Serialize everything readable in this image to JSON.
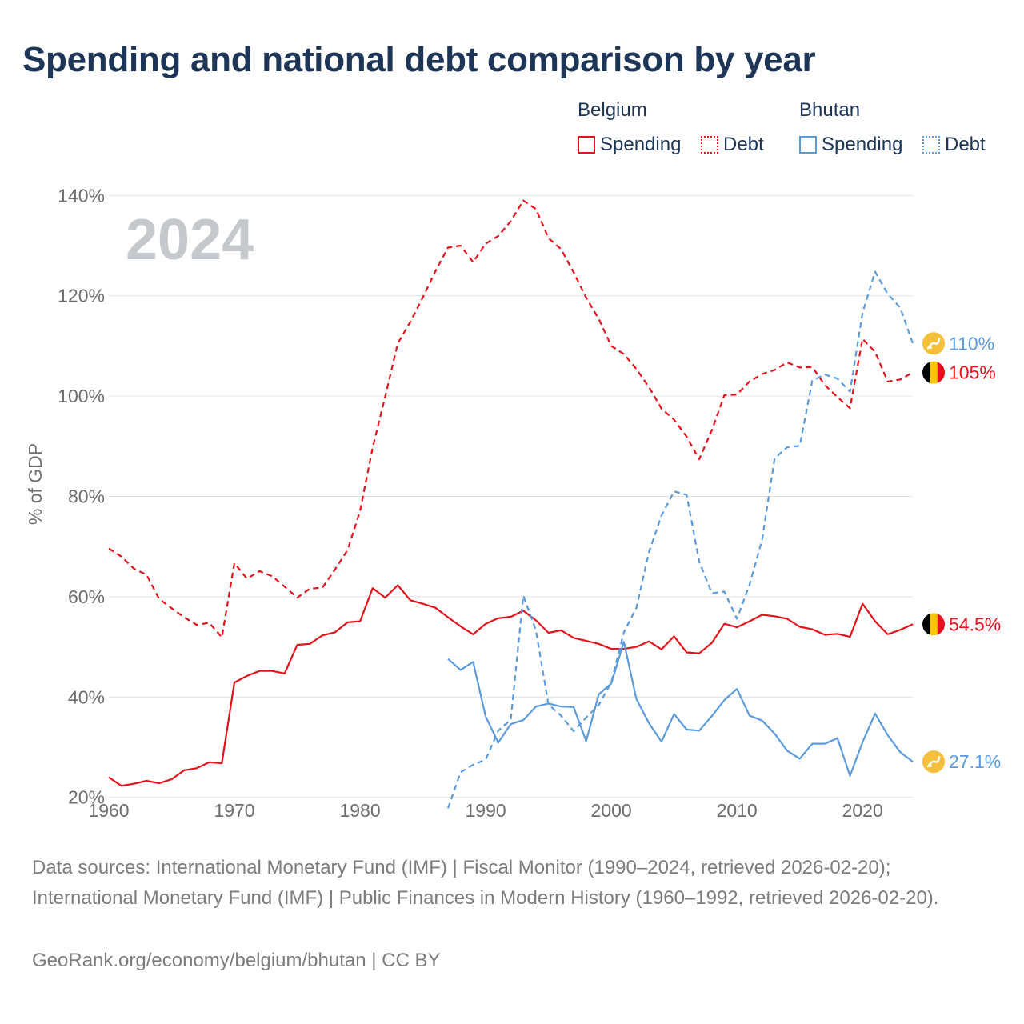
{
  "title": "Spending and national debt comparison by year",
  "legend": {
    "groups": [
      {
        "country": "Belgium",
        "items": [
          {
            "label": "Spending",
            "style": "solid",
            "color": "#e3121b"
          },
          {
            "label": "Debt",
            "style": "dotted",
            "color": "#e3121b"
          }
        ]
      },
      {
        "country": "Bhutan",
        "items": [
          {
            "label": "Spending",
            "style": "solid",
            "color": "#5b9bdc"
          },
          {
            "label": "Debt",
            "style": "dotted",
            "color": "#5b9bdc"
          }
        ]
      }
    ]
  },
  "chart_data": {
    "type": "line",
    "title": "Spending and national debt comparison by year",
    "year_label": "2024",
    "xlabel": "",
    "ylabel": "% of GDP",
    "xlim": [
      1960,
      2024
    ],
    "ylim": [
      15,
      145
    ],
    "x_ticks": [
      1960,
      1970,
      1980,
      1990,
      2000,
      2010,
      2020
    ],
    "y_ticks": [
      20,
      40,
      60,
      80,
      100,
      120,
      140
    ],
    "y_tick_suffix": "%",
    "grid": true,
    "series": [
      {
        "name": "Belgium Debt",
        "country": "Belgium",
        "metric": "Debt",
        "color": "#e3121b",
        "dash": "dashed",
        "end_label": "105%",
        "flag": "belgium",
        "points": [
          [
            1960,
            69.6
          ],
          [
            1961,
            68
          ],
          [
            1962,
            65.6
          ],
          [
            1963,
            64.4
          ],
          [
            1964,
            59.6
          ],
          [
            1965,
            57.7
          ],
          [
            1966,
            55.9
          ],
          [
            1967,
            54.4
          ],
          [
            1968,
            54.8
          ],
          [
            1969,
            51.9
          ],
          [
            1970,
            66.7
          ],
          [
            1971,
            63.6
          ],
          [
            1972,
            65.1
          ],
          [
            1973,
            64.1
          ],
          [
            1974,
            62
          ],
          [
            1975,
            59.8
          ],
          [
            1976,
            61.6
          ],
          [
            1977,
            61.8
          ],
          [
            1978,
            65.4
          ],
          [
            1979,
            69.3
          ],
          [
            1980,
            77.1
          ],
          [
            1981,
            89.7
          ],
          [
            1982,
            99.9
          ],
          [
            1983,
            110.5
          ],
          [
            1984,
            114.8
          ],
          [
            1985,
            119.7
          ],
          [
            1986,
            124.9
          ],
          [
            1987,
            129.6
          ],
          [
            1988,
            130
          ],
          [
            1989,
            126.7
          ],
          [
            1990,
            130.4
          ],
          [
            1991,
            131.9
          ],
          [
            1992,
            134.9
          ],
          [
            1993,
            139
          ],
          [
            1994,
            137.3
          ],
          [
            1995,
            131.5
          ],
          [
            1996,
            129.3
          ],
          [
            1997,
            124.7
          ],
          [
            1998,
            119.6
          ],
          [
            1999,
            115.4
          ],
          [
            2000,
            110
          ],
          [
            2001,
            108.4
          ],
          [
            2002,
            105.4
          ],
          [
            2003,
            101.8
          ],
          [
            2004,
            97.5
          ],
          [
            2005,
            95.3
          ],
          [
            2006,
            91.9
          ],
          [
            2007,
            87.4
          ],
          [
            2008,
            93.2
          ],
          [
            2009,
            100.2
          ],
          [
            2010,
            100.3
          ],
          [
            2011,
            102.9
          ],
          [
            2012,
            104.4
          ],
          [
            2013,
            105.2
          ],
          [
            2014,
            106.7
          ],
          [
            2015,
            105.7
          ],
          [
            2016,
            105.8
          ],
          [
            2017,
            102.2
          ],
          [
            2018,
            99.8
          ],
          [
            2019,
            97.6
          ],
          [
            2020,
            111.4
          ],
          [
            2021,
            108.8
          ],
          [
            2022,
            102.9
          ],
          [
            2023,
            103.3
          ],
          [
            2024,
            104.7
          ]
        ]
      },
      {
        "name": "Belgium Spending",
        "country": "Belgium",
        "metric": "Spending",
        "color": "#e3121b",
        "dash": "solid",
        "end_label": "54.5%",
        "flag": "belgium",
        "points": [
          [
            1960,
            24
          ],
          [
            1961,
            22.3
          ],
          [
            1962,
            22.7
          ],
          [
            1963,
            23.3
          ],
          [
            1964,
            22.8
          ],
          [
            1965,
            23.6
          ],
          [
            1966,
            25.4
          ],
          [
            1967,
            25.8
          ],
          [
            1968,
            27
          ],
          [
            1969,
            26.8
          ],
          [
            1970,
            42.9
          ],
          [
            1971,
            44.2
          ],
          [
            1972,
            45.2
          ],
          [
            1973,
            45.2
          ],
          [
            1974,
            44.7
          ],
          [
            1975,
            50.4
          ],
          [
            1976,
            50.6
          ],
          [
            1977,
            52.3
          ],
          [
            1978,
            52.9
          ],
          [
            1979,
            54.9
          ],
          [
            1980,
            55.1
          ],
          [
            1981,
            61.7
          ],
          [
            1982,
            59.8
          ],
          [
            1983,
            62.3
          ],
          [
            1984,
            59.3
          ],
          [
            1985,
            58.6
          ],
          [
            1986,
            57.8
          ],
          [
            1987,
            55.9
          ],
          [
            1988,
            54.1
          ],
          [
            1989,
            52.5
          ],
          [
            1990,
            54.6
          ],
          [
            1991,
            55.7
          ],
          [
            1992,
            56
          ],
          [
            1993,
            57.2
          ],
          [
            1994,
            55.3
          ],
          [
            1995,
            52.8
          ],
          [
            1996,
            53.3
          ],
          [
            1997,
            51.8
          ],
          [
            1998,
            51.2
          ],
          [
            1999,
            50.6
          ],
          [
            2000,
            49.6
          ],
          [
            2001,
            49.6
          ],
          [
            2002,
            50
          ],
          [
            2003,
            51.1
          ],
          [
            2004,
            49.5
          ],
          [
            2005,
            52.1
          ],
          [
            2006,
            48.9
          ],
          [
            2007,
            48.7
          ],
          [
            2008,
            50.8
          ],
          [
            2009,
            54.6
          ],
          [
            2010,
            53.9
          ],
          [
            2011,
            55.1
          ],
          [
            2012,
            56.4
          ],
          [
            2013,
            56.1
          ],
          [
            2014,
            55.6
          ],
          [
            2015,
            54
          ],
          [
            2016,
            53.5
          ],
          [
            2017,
            52.4
          ],
          [
            2018,
            52.6
          ],
          [
            2019,
            52
          ],
          [
            2020,
            58.6
          ],
          [
            2021,
            55.1
          ],
          [
            2022,
            52.5
          ],
          [
            2023,
            53.4
          ],
          [
            2024,
            54.5
          ]
        ]
      },
      {
        "name": "Bhutan Debt",
        "country": "Bhutan",
        "metric": "Debt",
        "color": "#5b9bdc",
        "dash": "dashed",
        "end_label": "110%",
        "flag": "bhutan",
        "points": [
          [
            1987,
            17.8
          ],
          [
            1988,
            25
          ],
          [
            1989,
            26.5
          ],
          [
            1990,
            27.5
          ],
          [
            1991,
            33.3
          ],
          [
            1992,
            35.5
          ],
          [
            1993,
            60.2
          ],
          [
            1994,
            53.3
          ],
          [
            1995,
            38.5
          ],
          [
            1996,
            36.3
          ],
          [
            1997,
            33.2
          ],
          [
            1998,
            35.9
          ],
          [
            1999,
            38.4
          ],
          [
            2000,
            42.9
          ],
          [
            2001,
            52.9
          ],
          [
            2002,
            57.8
          ],
          [
            2003,
            68.9
          ],
          [
            2004,
            76.2
          ],
          [
            2005,
            81
          ],
          [
            2006,
            80.3
          ],
          [
            2007,
            67
          ],
          [
            2008,
            60.7
          ],
          [
            2009,
            61
          ],
          [
            2010,
            55.6
          ],
          [
            2011,
            62.4
          ],
          [
            2012,
            71.3
          ],
          [
            2013,
            87.6
          ],
          [
            2014,
            89.8
          ],
          [
            2015,
            90.1
          ],
          [
            2016,
            103.1
          ],
          [
            2017,
            104.3
          ],
          [
            2018,
            103.5
          ],
          [
            2019,
            100.9
          ],
          [
            2020,
            116.6
          ],
          [
            2021,
            124.8
          ],
          [
            2022,
            120.4
          ],
          [
            2023,
            117.6
          ],
          [
            2024,
            110.5
          ]
        ]
      },
      {
        "name": "Bhutan Spending",
        "country": "Bhutan",
        "metric": "Spending",
        "color": "#5b9bdc",
        "dash": "solid",
        "end_label": "27.1%",
        "flag": "bhutan",
        "points": [
          [
            1987,
            47.6
          ],
          [
            1988,
            45.4
          ],
          [
            1989,
            47
          ],
          [
            1990,
            36.1
          ],
          [
            1991,
            30.9
          ],
          [
            1992,
            34.6
          ],
          [
            1993,
            35.4
          ],
          [
            1994,
            38.1
          ],
          [
            1995,
            38.7
          ],
          [
            1996,
            38.1
          ],
          [
            1997,
            38
          ],
          [
            1998,
            31.2
          ],
          [
            1999,
            40.5
          ],
          [
            2000,
            42.7
          ],
          [
            2001,
            51
          ],
          [
            2002,
            39.6
          ],
          [
            2003,
            34.8
          ],
          [
            2004,
            31.1
          ],
          [
            2005,
            36.6
          ],
          [
            2006,
            33.5
          ],
          [
            2007,
            33.3
          ],
          [
            2008,
            36.2
          ],
          [
            2009,
            39.4
          ],
          [
            2010,
            41.6
          ],
          [
            2011,
            36.3
          ],
          [
            2012,
            35.3
          ],
          [
            2013,
            32.7
          ],
          [
            2014,
            29.3
          ],
          [
            2015,
            27.7
          ],
          [
            2016,
            30.7
          ],
          [
            2017,
            30.7
          ],
          [
            2018,
            31.8
          ],
          [
            2019,
            24.3
          ],
          [
            2020,
            31
          ],
          [
            2021,
            36.7
          ],
          [
            2022,
            32.4
          ],
          [
            2023,
            29
          ],
          [
            2024,
            27.1
          ]
        ]
      }
    ]
  },
  "footer": {
    "sources": "Data sources: International Monetary Fund (IMF) | Fiscal Monitor (1990–2024, retrieved 2026-02-20); International Monetary Fund (IMF) | Public Finances in Modern History (1960–1992, retrieved 2026-02-20).",
    "link": "GeoRank.org/economy/belgium/bhutan | CC BY"
  }
}
